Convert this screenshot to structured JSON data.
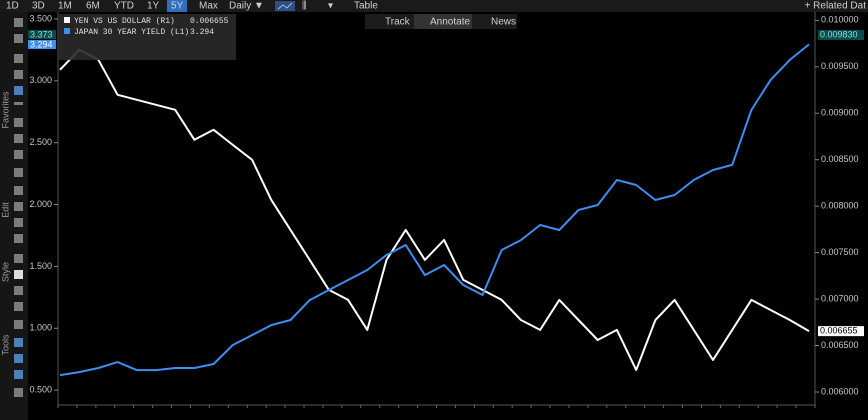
{
  "toolbar": {
    "ranges": [
      "1D",
      "3D",
      "1M",
      "6M",
      "YTD",
      "1Y",
      "5Y",
      "Max"
    ],
    "frequency": "Daily ▼",
    "table": "Table",
    "related": "+ Related Dat",
    "modes": [
      "Track",
      "Annotate",
      "News"
    ]
  },
  "sidebar": [
    "Favorites",
    "Edit",
    "Style",
    "Tools"
  ],
  "chart_data": {
    "type": "line",
    "annotations": [
      "3.373",
      "0.009830"
    ],
    "series": [
      {
        "name": "YEN VS US DOLLAR (R1)",
        "color": "#ffffff",
        "axis": "y2",
        "values": [
          0.009468,
          0.009683,
          0.009576,
          0.009199,
          0.009145,
          0.009091,
          0.009037,
          0.008714,
          0.008822,
          0.00866,
          0.008499,
          0.008068,
          0.007745,
          0.007422,
          0.007099,
          0.006991,
          0.006668,
          0.007422,
          0.007745,
          0.007422,
          0.007637,
          0.007206,
          0.007099,
          0.006991,
          0.006775,
          0.006668,
          0.006991,
          0.006775,
          0.00656,
          0.006668,
          0.006237,
          0.006775,
          0.006991,
          0.006668,
          0.006345,
          0.006668,
          0.006991,
          0.006883,
          0.006775,
          0.006655
        ]
      },
      {
        "name": "JAPAN 30 YEAR YIELD (L1)",
        "color": "#3d8ef0",
        "values": [
          0.622,
          0.646,
          0.679,
          0.727,
          0.662,
          0.662,
          0.679,
          0.679,
          0.711,
          0.865,
          0.945,
          1.026,
          1.067,
          1.228,
          1.309,
          1.39,
          1.471,
          1.592,
          1.673,
          1.43,
          1.511,
          1.35,
          1.269,
          1.633,
          1.713,
          1.835,
          1.794,
          1.956,
          1.996,
          2.198,
          2.158,
          2.037,
          2.077,
          2.198,
          2.279,
          2.32,
          2.764,
          3.007,
          3.169,
          3.294
        ]
      }
    ],
    "ylim": [
      0.38,
      3.556
    ],
    "yticks": [
      {
        "value": 0.5,
        "label": "0.500"
      },
      {
        "value": 1,
        "label": "1.000"
      },
      {
        "value": 1.5,
        "label": "1.500"
      },
      {
        "value": 2,
        "label": "2.000"
      },
      {
        "value": 2.5,
        "label": "2.500"
      },
      {
        "value": 3,
        "label": "3.000"
      },
      {
        "value": 3.5,
        "label": "3.500"
      }
    ],
    "y2lim": [
      0.00586,
      0.01009
    ],
    "y2ticks": [
      {
        "value": 0.006,
        "label": "0.006000"
      },
      {
        "value": 0.0065,
        "label": "0.006500"
      },
      {
        "value": 0.007,
        "label": "0.007000"
      },
      {
        "value": 0.0075,
        "label": "0.007500"
      },
      {
        "value": 0.008,
        "label": "0.008000"
      },
      {
        "value": 0.0085,
        "label": "0.008500"
      },
      {
        "value": 0.009,
        "label": "0.009000"
      },
      {
        "value": 0.0095,
        "label": "0.009500"
      },
      {
        "value": 0.01,
        "label": "0.010000"
      }
    ]
  }
}
